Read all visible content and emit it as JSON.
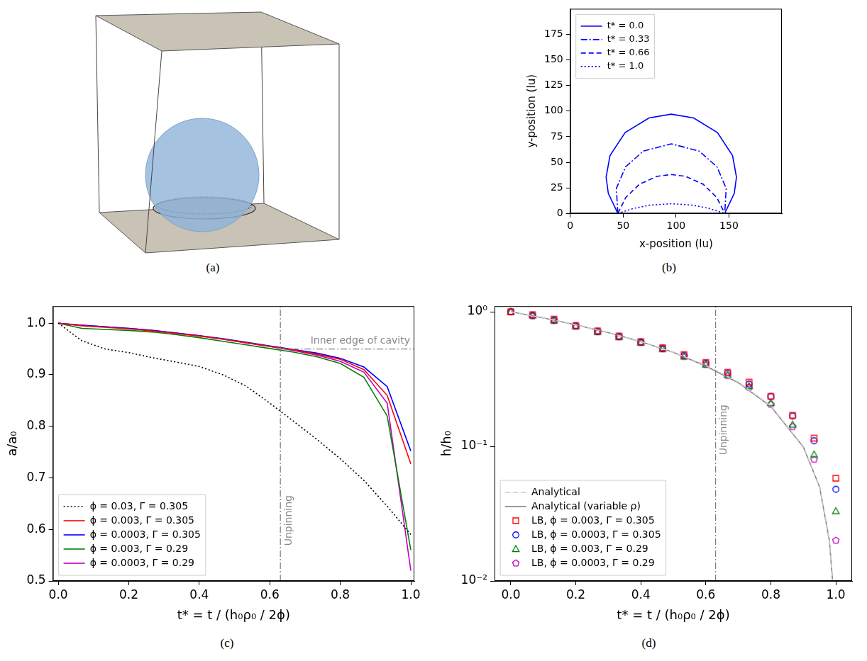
{
  "diagram": {
    "panel_label": "(a)"
  },
  "chart_data": [
    {
      "panel_label": "(b)",
      "type": "line",
      "x_label": "x-position (lu)",
      "y_label": "y-position (lu)",
      "xlim": [
        0,
        200
      ],
      "xticks": [
        0,
        50,
        100,
        150
      ],
      "ylim": [
        0,
        200
      ],
      "yticks": [
        0,
        25,
        50,
        75,
        100,
        125,
        150,
        175
      ],
      "grid": false,
      "legend": "upper left",
      "series": [
        {
          "name": "t* = 0.0",
          "color": "#0000ff",
          "line_style": "solid",
          "x": [
            45,
            36,
            33.9,
            37.6,
            51.9,
            74.4,
            95.5,
            116.6,
            139.1,
            153.4,
            157.1,
            155,
            146
          ],
          "values": [
            0,
            19.5,
            35.4,
            56.5,
            79,
            93.3,
            97,
            93.3,
            79,
            56.5,
            35.4,
            19.5,
            0
          ]
        },
        {
          "name": "t* = 0.33",
          "color": "#0000ff",
          "line_style": "dashdot",
          "x": [
            45,
            43.6,
            52.3,
            69.1,
            95.5,
            121.9,
            138.7,
            147.4,
            146
          ],
          "values": [
            0,
            24.4,
            45.5,
            60.9,
            68,
            60.9,
            45.5,
            24.4,
            0
          ]
        },
        {
          "name": "t* = 0.66",
          "color": "#0000ff",
          "line_style": "dashed",
          "x": [
            45,
            52.5,
            65.4,
            81.9,
            95.5,
            109.1,
            125.6,
            138.5,
            146
          ],
          "values": [
            0,
            15.6,
            28.5,
            36.2,
            38,
            36.2,
            28.5,
            15.6,
            0
          ]
        },
        {
          "name": "t* = 1.0",
          "color": "#0000ff",
          "line_style": "dotted",
          "x": [
            45,
            60,
            75,
            95.5,
            116,
            131,
            146
          ],
          "values": [
            0,
            4.9,
            8,
            9.5,
            8,
            4.9,
            0
          ]
        }
      ]
    },
    {
      "panel_label": "(c)",
      "type": "line",
      "x_label": "t* = t / (h₀ρ₀ / 2ϕ)",
      "y_label": "a/a₀",
      "xlim": [
        -0.015,
        1.01
      ],
      "xticks": [
        {
          "value": 0,
          "label": "0.0"
        },
        {
          "value": 0.2,
          "label": "0.2"
        },
        {
          "value": 0.4,
          "label": "0.4"
        },
        {
          "value": 0.6,
          "label": "0.6"
        },
        {
          "value": 0.8,
          "label": "0.8"
        },
        {
          "value": 1,
          "label": "1.0"
        }
      ],
      "ylim": [
        0.5,
        1.033
      ],
      "yticks": [
        0.5,
        0.6,
        0.7,
        0.8,
        0.9,
        {
          "value": 1,
          "label": "1.0"
        }
      ],
      "grid": false,
      "legend": "lower left",
      "x": [
        0,
        0.067,
        0.133,
        0.2,
        0.267,
        0.333,
        0.4,
        0.467,
        0.533,
        0.6,
        0.667,
        0.733,
        0.8,
        0.867,
        0.933,
        1.0
      ],
      "series": [
        {
          "name": "ϕ = 0.03, Γ = 0.305",
          "color": "#000000",
          "line_style": "dotted",
          "values": [
            1,
            0.966,
            0.95,
            0.943,
            0.933,
            0.925,
            0.916,
            0.9,
            0.878,
            0.845,
            0.81,
            0.775,
            0.737,
            0.695,
            0.645,
            0.59
          ]
        },
        {
          "name": "ϕ = 0.003, Γ = 0.305",
          "color": "#ff0000",
          "line_style": "solid",
          "values": [
            1,
            0.995,
            0.992,
            0.989,
            0.985,
            0.98,
            0.975,
            0.969,
            0.962,
            0.955,
            0.948,
            0.94,
            0.93,
            0.91,
            0.86,
            0.727
          ]
        },
        {
          "name": "ϕ = 0.0003, Γ = 0.305",
          "color": "#0000ff",
          "line_style": "solid",
          "values": [
            1,
            0.996,
            0.993,
            0.99,
            0.986,
            0.981,
            0.976,
            0.97,
            0.963,
            0.956,
            0.949,
            0.942,
            0.932,
            0.915,
            0.877,
            0.752
          ]
        },
        {
          "name": "ϕ = 0.003, Γ = 0.29",
          "color": "#008000",
          "line_style": "solid",
          "values": [
            1,
            0.99,
            0.988,
            0.986,
            0.983,
            0.978,
            0.972,
            0.965,
            0.958,
            0.951,
            0.944,
            0.935,
            0.922,
            0.895,
            0.82,
            0.56
          ]
        },
        {
          "name": "ϕ = 0.0003, Γ = 0.29",
          "color": "#bf00bf",
          "line_style": "solid",
          "values": [
            1,
            0.996,
            0.993,
            0.99,
            0.986,
            0.981,
            0.976,
            0.969,
            0.962,
            0.955,
            0.947,
            0.938,
            0.926,
            0.905,
            0.845,
            0.52
          ]
        }
      ],
      "annotations": [
        {
          "type": "vline",
          "x": 0.63,
          "text": "Unpinning"
        },
        {
          "type": "hline",
          "y": 0.95,
          "x_from": 0.63,
          "text": "Inner edge of cavity"
        }
      ]
    },
    {
      "panel_label": "(d)",
      "type": "scatter",
      "x_label": "t* = t / (h₀ρ₀ / 2ϕ)",
      "y_label": "h/h₀",
      "log": "y",
      "xlim": [
        -0.05,
        1.05
      ],
      "xticks": [
        {
          "value": 0,
          "label": "0.0"
        },
        {
          "value": 0.2,
          "label": "0.2"
        },
        {
          "value": 0.4,
          "label": "0.4"
        },
        {
          "value": 0.6,
          "label": "0.6"
        },
        {
          "value": 0.8,
          "label": "0.8"
        },
        {
          "value": 1,
          "label": "1.0"
        }
      ],
      "ylim": [
        0.01,
        1.1
      ],
      "yticks": [
        {
          "value": 0.01,
          "label": "10⁻²"
        },
        {
          "value": 0.1,
          "label": "10⁻¹"
        },
        {
          "value": 1,
          "label": "10⁰"
        }
      ],
      "grid": false,
      "legend": "lower left",
      "x": [
        0,
        0.067,
        0.133,
        0.2,
        0.267,
        0.333,
        0.4,
        0.467,
        0.533,
        0.6,
        0.667,
        0.733,
        0.8,
        0.867,
        0.933,
        1.0
      ],
      "series": [
        {
          "name": "Analytical",
          "type": "line",
          "color": "#cccccc",
          "line_style": "dashed",
          "marker": "none",
          "x": [
            0,
            0.1,
            0.2,
            0.3,
            0.4,
            0.5,
            0.6,
            0.7,
            0.8,
            0.9,
            0.95,
            0.98,
            0.99
          ],
          "values": [
            1,
            0.9,
            0.8,
            0.7,
            0.6,
            0.5,
            0.4,
            0.3,
            0.2,
            0.1,
            0.05,
            0.02,
            0.01
          ]
        },
        {
          "name": "Analytical (variable ρ)",
          "type": "line",
          "color": "#808080",
          "line_style": "solid",
          "marker": "none",
          "x": [
            0,
            0.1,
            0.2,
            0.3,
            0.4,
            0.5,
            0.6,
            0.7,
            0.8,
            0.9,
            0.95,
            0.98,
            0.99
          ],
          "values": [
            1,
            0.9,
            0.8,
            0.7,
            0.6,
            0.5,
            0.395,
            0.297,
            0.198,
            0.099,
            0.05,
            0.02,
            0.01
          ]
        },
        {
          "name": "LB, ϕ = 0.003, Γ = 0.305",
          "type": "scatter",
          "color": "#ff0000",
          "marker": "square",
          "values": [
            1,
            0.95,
            0.88,
            0.79,
            0.72,
            0.66,
            0.6,
            0.54,
            0.48,
            0.42,
            0.355,
            0.3,
            0.235,
            0.17,
            0.115,
            0.058
          ]
        },
        {
          "name": "LB, ϕ = 0.0003, Γ = 0.305",
          "type": "scatter",
          "color": "#0000ff",
          "marker": "circle",
          "values": [
            1,
            0.94,
            0.87,
            0.785,
            0.715,
            0.655,
            0.595,
            0.535,
            0.475,
            0.415,
            0.35,
            0.29,
            0.235,
            0.168,
            0.11,
            0.048
          ]
        },
        {
          "name": "LB, ϕ = 0.003, Γ = 0.29",
          "type": "scatter",
          "color": "#008000",
          "marker": "triangle",
          "values": [
            1,
            0.94,
            0.86,
            0.78,
            0.71,
            0.65,
            0.59,
            0.53,
            0.465,
            0.405,
            0.34,
            0.28,
            0.21,
            0.145,
            0.087,
            0.033
          ]
        },
        {
          "name": "LB, ϕ = 0.0003, Γ = 0.29",
          "type": "scatter",
          "color": "#bf00bf",
          "marker": "pentagon",
          "values": [
            1,
            0.93,
            0.86,
            0.78,
            0.71,
            0.65,
            0.59,
            0.53,
            0.465,
            0.405,
            0.335,
            0.275,
            0.205,
            0.14,
            0.08,
            0.02
          ]
        }
      ],
      "annotations": [
        {
          "type": "vline",
          "x": 0.63,
          "text": "Unpinning"
        }
      ]
    }
  ]
}
